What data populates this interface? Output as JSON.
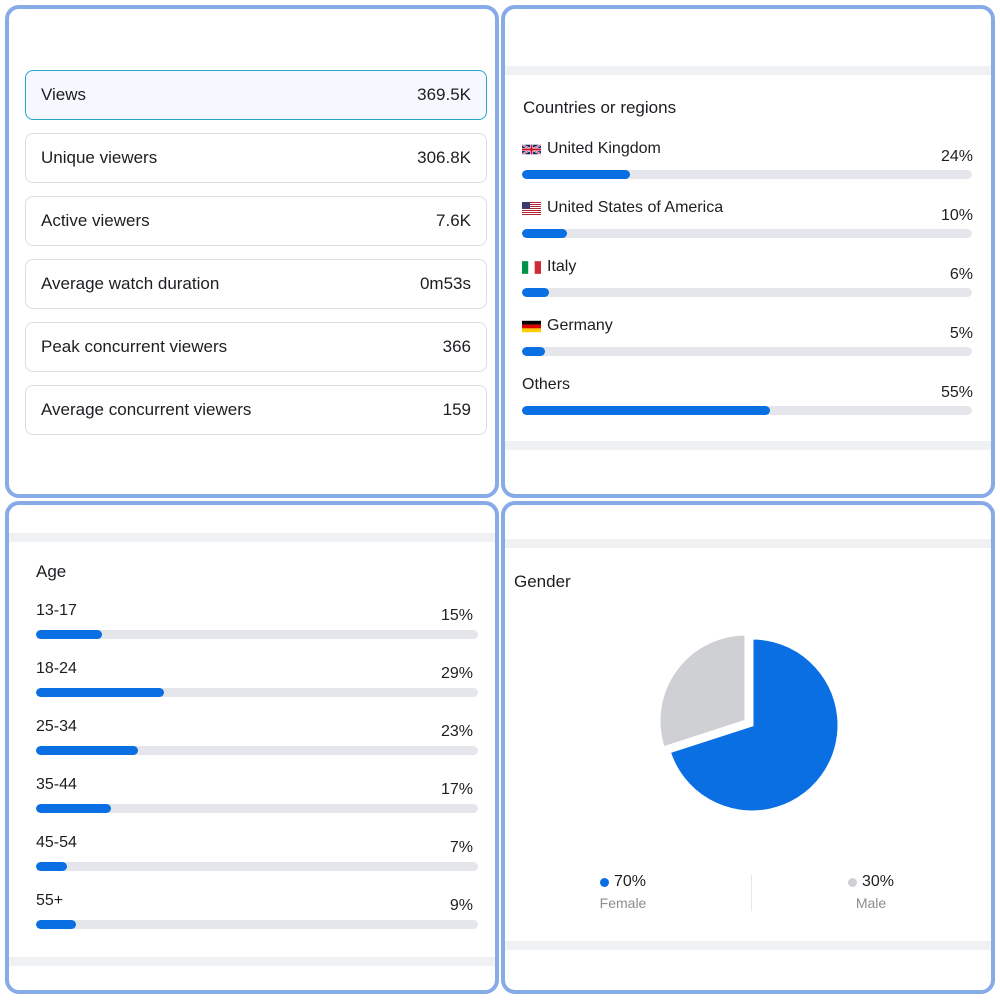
{
  "metrics": [
    {
      "label": "Views",
      "value": "369.5K",
      "active": true
    },
    {
      "label": "Unique viewers",
      "value": "306.8K",
      "active": false
    },
    {
      "label": "Active viewers",
      "value": "7.6K",
      "active": false
    },
    {
      "label": "Average watch duration",
      "value": "0m53s",
      "active": false
    },
    {
      "label": "Peak concurrent viewers",
      "value": "366",
      "active": false
    },
    {
      "label": "Average concurrent viewers",
      "value": "159",
      "active": false
    }
  ],
  "countries": {
    "title": "Countries or regions",
    "items": [
      {
        "name": "United Kingdom",
        "percent_text": "24%",
        "percent": 24,
        "flag": "uk-flag"
      },
      {
        "name": "United States of America",
        "percent_text": "10%",
        "percent": 10,
        "flag": "us-flag"
      },
      {
        "name": "Italy",
        "percent_text": "6%",
        "percent": 6,
        "flag": "italy-flag"
      },
      {
        "name": "Germany",
        "percent_text": "5%",
        "percent": 5,
        "flag": "germany-flag"
      },
      {
        "name": "Others",
        "percent_text": "55%",
        "percent": 55,
        "flag": null
      }
    ]
  },
  "age": {
    "title": "Age",
    "items": [
      {
        "range": "13-17",
        "percent_text": "15%",
        "percent": 15
      },
      {
        "range": "18-24",
        "percent_text": "29%",
        "percent": 29
      },
      {
        "range": "25-34",
        "percent_text": "23%",
        "percent": 23
      },
      {
        "range": "35-44",
        "percent_text": "17%",
        "percent": 17
      },
      {
        "range": "45-54",
        "percent_text": "7%",
        "percent": 7
      },
      {
        "range": "55+",
        "percent_text": "9%",
        "percent": 9
      }
    ]
  },
  "gender": {
    "title": "Gender",
    "female": {
      "value_text": "70%",
      "value": 70,
      "label": "Female"
    },
    "male": {
      "value_text": "30%",
      "value": 30,
      "label": "Male"
    }
  },
  "colors": {
    "accent": "#0a6fe3",
    "track": "#e4e6eb",
    "male": "#cfd0d4",
    "panel_border": "#86abe6",
    "active_border": "#2aa6c9"
  }
}
